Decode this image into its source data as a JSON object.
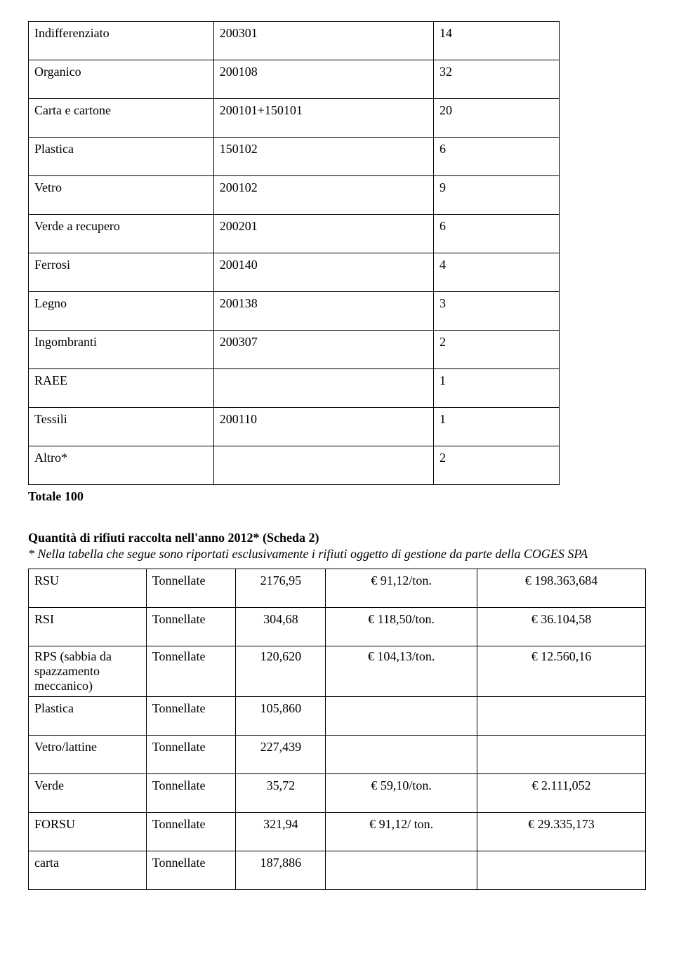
{
  "table1": {
    "rows": [
      {
        "c1": "Indifferenziato",
        "c2": "200301",
        "c3": "14"
      },
      {
        "c1": "Organico",
        "c2": "200108",
        "c3": "32"
      },
      {
        "c1": "Carta e cartone",
        "c2": "200101+150101",
        "c3": "20"
      },
      {
        "c1": "Plastica",
        "c2": "150102",
        "c3": "6"
      },
      {
        "c1": "Vetro",
        "c2": "200102",
        "c3": "9"
      },
      {
        "c1": "Verde a recupero",
        "c2": "200201",
        "c3": "6"
      },
      {
        "c1": "Ferrosi",
        "c2": "200140",
        "c3": "4"
      },
      {
        "c1": "Legno",
        "c2": "200138",
        "c3": "3"
      },
      {
        "c1": "Ingombranti",
        "c2": "200307",
        "c3": "2"
      },
      {
        "c1": "RAEE",
        "c2": "",
        "c3": "1"
      },
      {
        "c1": "Tessili",
        "c2": "200110",
        "c3": "1"
      },
      {
        "c1": "Altro*",
        "c2": "",
        "c3": "2"
      }
    ],
    "total_label": "Totale 100"
  },
  "section2": {
    "heading": "Quantità di rifiuti raccolta nell'anno 2012* (Scheda 2)",
    "note": "* Nella tabella che segue sono riportati esclusivamente i rifiuti oggetto di gestione da parte della COGES SPA"
  },
  "table2": {
    "rows": [
      {
        "c1": "RSU",
        "c2": "Tonnellate",
        "c3": "2176,95",
        "c4": "€ 91,12/ton.",
        "c5": "€ 198.363,684",
        "tight": false
      },
      {
        "c1": "RSI",
        "c2": "Tonnellate",
        "c3": "304,68",
        "c4": "€ 118,50/ton.",
        "c5": "€ 36.104,58",
        "tight": false
      },
      {
        "c1": "RPS (sabbia da spazzamento meccanico)",
        "c2": "Tonnellate",
        "c3": "120,620",
        "c4": "€ 104,13/ton.",
        "c5": "€ 12.560,16",
        "tight": true
      },
      {
        "c1": "Plastica",
        "c2": "Tonnellate",
        "c3": "105,860",
        "c4": "",
        "c5": "",
        "tight": false
      },
      {
        "c1": "Vetro/lattine",
        "c2": "Tonnellate",
        "c3": "227,439",
        "c4": "",
        "c5": "",
        "tight": false
      },
      {
        "c1": "Verde",
        "c2": "Tonnellate",
        "c3": "35,72",
        "c4": "€ 59,10/ton.",
        "c5": "€ 2.111,052",
        "tight": false
      },
      {
        "c1": "FORSU",
        "c2": "Tonnellate",
        "c3": "321,94",
        "c4": "€ 91,12/ ton.",
        "c5": "€ 29.335,173",
        "tight": false
      },
      {
        "c1": "carta",
        "c2": "Tonnellate",
        "c3": "187,886",
        "c4": "",
        "c5": "",
        "tight": false
      }
    ]
  }
}
